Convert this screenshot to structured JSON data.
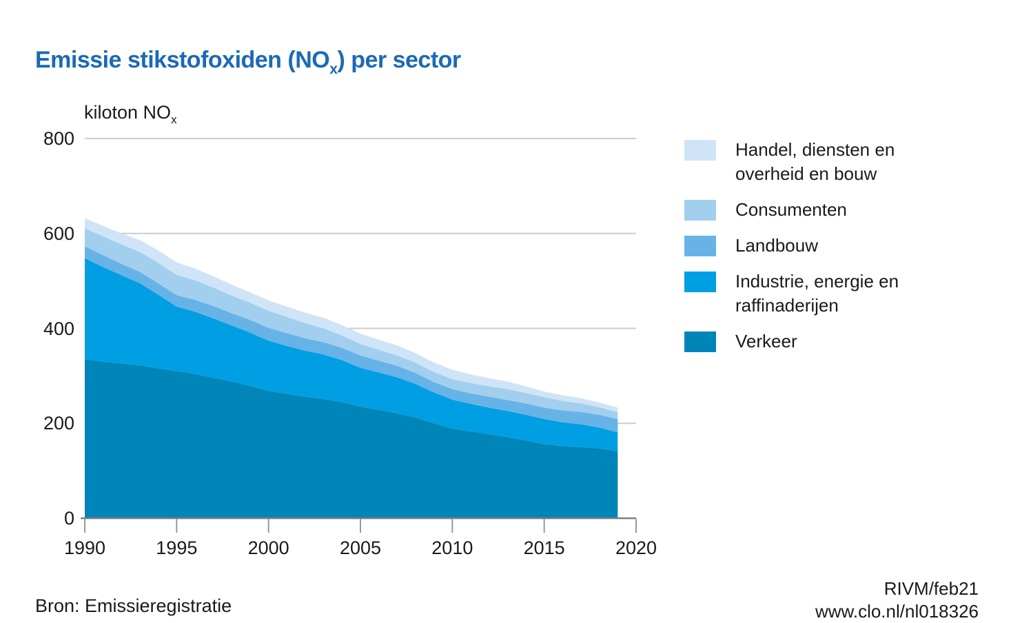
{
  "title": {
    "prefix": "Emissie stikstofoxiden (NO",
    "subscript": "x",
    "suffix": ") per sector"
  },
  "y_axis_title": {
    "prefix": "kiloton NO",
    "subscript": "x"
  },
  "footer": {
    "source": "Bron: Emissieregistratie",
    "credit_line1": "RIVM/feb21",
    "credit_line2": "www.clo.nl/nl018326"
  },
  "colors": {
    "title_blue": "#1b6ab5",
    "gridline": "#cccccc",
    "axis_line": "#7f7f7f",
    "tick": "#999999",
    "text": "#1a1a1a"
  },
  "chart_data": {
    "type": "area",
    "stacked": true,
    "title": "Emissie stikstofoxiden (NOx) per sector",
    "ylabel": "kiloton NOx",
    "xlabel": "",
    "grid": "horizontal",
    "legend_position": "right",
    "xlim": [
      1990,
      2020
    ],
    "ylim": [
      0,
      800
    ],
    "yticks": [
      0,
      200,
      400,
      600,
      800
    ],
    "xticks": [
      1990,
      1995,
      2000,
      2005,
      2010,
      2015,
      2020
    ],
    "x": [
      1990,
      1991,
      1992,
      1993,
      1994,
      1995,
      1996,
      1997,
      1998,
      1999,
      2000,
      2001,
      2002,
      2003,
      2004,
      2005,
      2006,
      2007,
      2008,
      2009,
      2010,
      2011,
      2012,
      2013,
      2014,
      2015,
      2016,
      2017,
      2018,
      2019
    ],
    "series": [
      {
        "name": "Handel, diensten en overheid en bouw",
        "color": "#cfe4f6",
        "values": [
          21,
          22,
          23,
          25,
          26,
          26,
          25,
          24,
          23,
          22,
          22,
          22,
          22,
          22,
          22,
          22,
          21,
          21,
          20,
          20,
          20,
          18,
          17,
          16,
          14,
          12,
          12,
          11,
          10,
          10
        ]
      },
      {
        "name": "Consumenten",
        "color": "#a2cfee",
        "values": [
          38,
          40,
          41,
          42,
          43,
          43,
          41,
          39,
          37,
          36,
          36,
          34,
          32,
          29,
          26,
          24,
          23,
          22,
          22,
          21,
          21,
          22,
          22,
          23,
          22,
          22,
          20,
          18,
          16,
          14
        ]
      },
      {
        "name": "Landbouw",
        "color": "#67b3e7",
        "values": [
          25,
          25,
          24,
          24,
          24,
          24,
          25,
          26,
          26,
          27,
          27,
          27,
          26,
          26,
          26,
          26,
          25,
          24,
          23,
          22,
          22,
          22,
          23,
          23,
          24,
          24,
          25,
          26,
          27,
          28
        ]
      },
      {
        "name": "Industrie, energie en raffinaderijen",
        "color": "#009ee2",
        "values": [
          213,
          199,
          186,
          173,
          155,
          136,
          131,
          125,
          118,
          112,
          106,
          101,
          97,
          94,
          88,
          82,
          79,
          76,
          71,
          65,
          61,
          58,
          56,
          55,
          54,
          53,
          50,
          48,
          44,
          40
        ]
      },
      {
        "name": "Verkeer",
        "color": "#0085b9",
        "values": [
          335,
          330,
          326,
          322,
          316,
          310,
          304,
          296,
          288,
          279,
          268,
          262,
          256,
          251,
          245,
          235,
          228,
          221,
          212,
          200,
          189,
          183,
          177,
          171,
          164,
          156,
          152,
          150,
          147,
          141
        ]
      }
    ],
    "stack_note": "series listed in legend order (top of stack first); Verkeer is the bottom layer"
  }
}
